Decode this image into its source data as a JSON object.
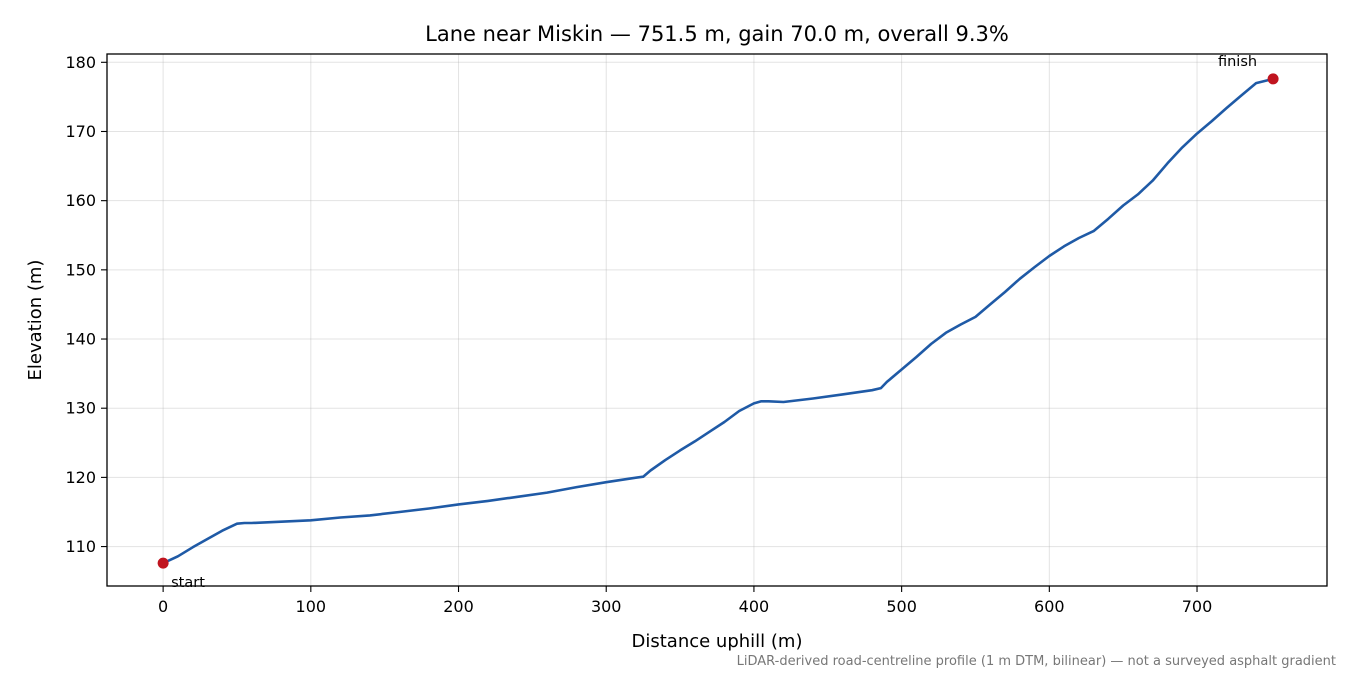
{
  "chart_data": {
    "type": "line",
    "title": "Lane near Miskin — 751.5 m, gain 70.0 m, overall 9.3%",
    "xlabel": "Distance uphill (m)",
    "ylabel": "Elevation (m)",
    "xlim": [
      -38,
      788
    ],
    "ylim": [
      104.3,
      181.2
    ],
    "xticks": [
      0,
      100,
      200,
      300,
      400,
      500,
      600,
      700
    ],
    "xtick_labels": [
      "0",
      "100",
      "200",
      "300",
      "400",
      "500",
      "600",
      "700"
    ],
    "yticks": [
      110,
      120,
      130,
      140,
      150,
      160,
      170,
      180
    ],
    "ytick_labels": [
      "110",
      "120",
      "130",
      "140",
      "150",
      "160",
      "170",
      "180"
    ],
    "grid": true,
    "series": [
      {
        "color": "#1f5aa6",
        "x": [
          0,
          10,
          20,
          30,
          40,
          50,
          55,
          60,
          80,
          100,
          120,
          140,
          160,
          180,
          200,
          220,
          240,
          260,
          280,
          300,
          315,
          325,
          330,
          340,
          350,
          360,
          370,
          380,
          390,
          400,
          405,
          410,
          420,
          440,
          460,
          480,
          486,
          490,
          500,
          510,
          520,
          530,
          540,
          550,
          560,
          570,
          580,
          590,
          600,
          610,
          620,
          630,
          640,
          650,
          660,
          670,
          680,
          690,
          700,
          710,
          720,
          730,
          740,
          751.5
        ],
        "y": [
          107.6,
          108.6,
          109.9,
          111.1,
          112.3,
          113.3,
          113.4,
          113.4,
          113.6,
          113.8,
          114.2,
          114.5,
          115.0,
          115.5,
          116.1,
          116.6,
          117.2,
          117.8,
          118.6,
          119.3,
          119.8,
          120.1,
          121.0,
          122.5,
          123.9,
          125.2,
          126.6,
          128.0,
          129.6,
          130.7,
          131.0,
          131.0,
          130.9,
          131.4,
          132.0,
          132.6,
          132.9,
          133.8,
          135.6,
          137.4,
          139.3,
          140.9,
          142.1,
          143.2,
          145.0,
          146.8,
          148.7,
          150.4,
          152.0,
          153.4,
          154.6,
          155.6,
          157.4,
          159.3,
          160.9,
          162.9,
          165.4,
          167.7,
          169.7,
          171.5,
          173.4,
          175.2,
          177.0,
          177.6
        ]
      }
    ],
    "points": [
      {
        "label": "start",
        "x": 0,
        "y": 107.6,
        "color": "#c0141f"
      },
      {
        "label": "finish",
        "x": 751.5,
        "y": 177.6,
        "color": "#c0141f"
      }
    ],
    "footnote": "LiDAR-derived road-centreline profile (1 m DTM, bilinear) — not a surveyed asphalt gradient"
  }
}
